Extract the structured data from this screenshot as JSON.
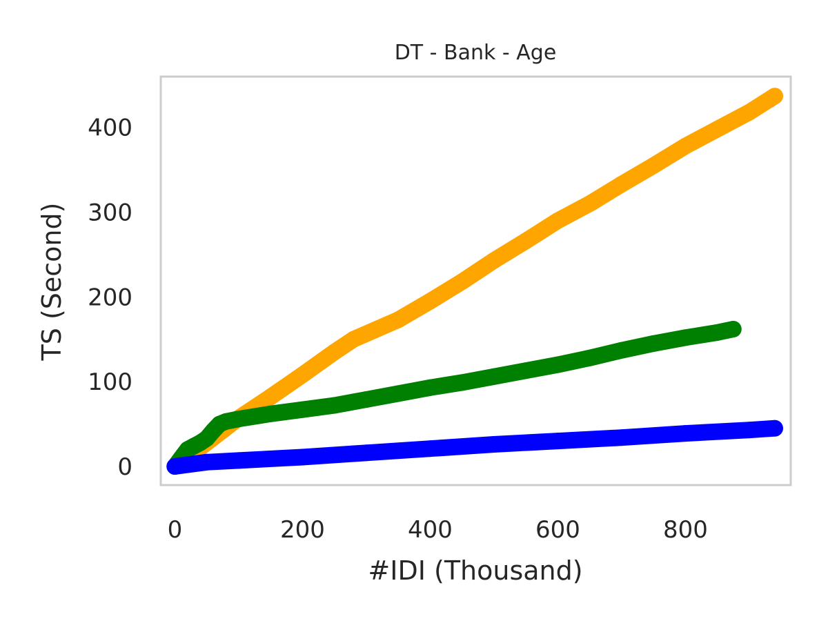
{
  "chart_data": {
    "type": "scatter",
    "title": "DT - Bank - Age",
    "xlabel": "#IDI (Thousand)",
    "ylabel": "TS (Second)",
    "xlim": [
      -22,
      965
    ],
    "ylim": [
      -22,
      460
    ],
    "x_ticks": [
      0,
      200,
      400,
      600,
      800
    ],
    "y_ticks": [
      0,
      100,
      200,
      300,
      400
    ],
    "grid": false,
    "legend": "none",
    "colors": {
      "axes_edge": "#cccccc",
      "text": "#262626"
    },
    "series": [
      {
        "color": "#ffa500",
        "x": [
          0,
          50,
          100,
          150,
          200,
          250,
          280,
          350,
          400,
          450,
          500,
          550,
          600,
          650,
          700,
          750,
          800,
          850,
          900,
          940
        ],
        "y": [
          0,
          28,
          57,
          82,
          108,
          135,
          150,
          173,
          195,
          218,
          243,
          266,
          290,
          310,
          333,
          355,
          378,
          398,
          418,
          437
        ]
      },
      {
        "color": "#008000",
        "x": [
          0,
          10,
          20,
          30,
          40,
          50,
          60,
          70,
          80,
          100,
          150,
          200,
          250,
          300,
          350,
          400,
          450,
          500,
          550,
          600,
          650,
          700,
          750,
          800,
          850,
          875
        ],
        "y": [
          0,
          10,
          20,
          24,
          28,
          33,
          42,
          50,
          53,
          56,
          62,
          67,
          72,
          79,
          86,
          93,
          99,
          106,
          113,
          120,
          128,
          137,
          145,
          152,
          158,
          162
        ]
      },
      {
        "color": "#0000ff",
        "x": [
          0,
          50,
          100,
          200,
          300,
          400,
          500,
          600,
          700,
          800,
          900,
          940
        ],
        "y": [
          0,
          5,
          7,
          11,
          16,
          21,
          26,
          30,
          34,
          39,
          43,
          45
        ]
      }
    ]
  }
}
